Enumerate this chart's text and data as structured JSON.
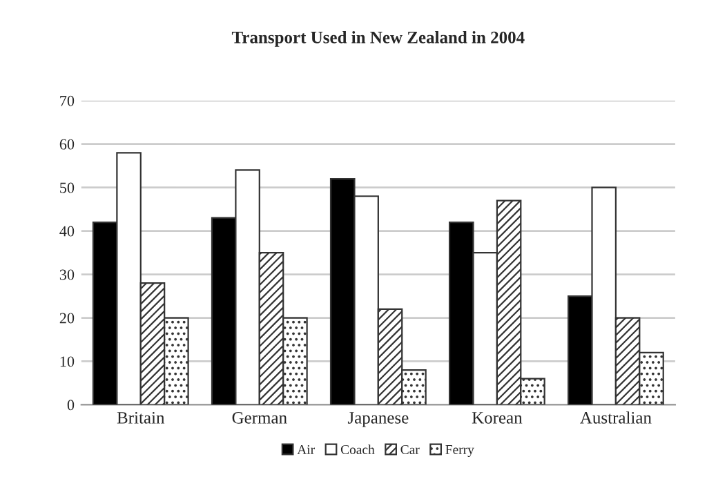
{
  "chart_data": {
    "type": "bar",
    "title": "Transport Used in New Zealand in 2004",
    "categories": [
      "Britain",
      "German",
      "Japanese",
      "Korean",
      "Australian"
    ],
    "series": [
      {
        "name": "Air",
        "color": "#000000",
        "values": [
          42,
          43,
          52,
          42,
          25
        ]
      },
      {
        "name": "Coach",
        "color": "#ffffff",
        "values": [
          58,
          54,
          48,
          35,
          50
        ]
      },
      {
        "name": "Car",
        "color": "#333333",
        "values": [
          28,
          35,
          22,
          47,
          20
        ]
      },
      {
        "name": "Ferry",
        "color": "#333333",
        "values": [
          20,
          20,
          8,
          6,
          12
        ]
      }
    ],
    "ylim": [
      0,
      70
    ],
    "yticks": [
      0,
      10,
      20,
      30,
      40,
      50,
      60,
      70
    ],
    "grid": "y",
    "legend": "bottom"
  }
}
